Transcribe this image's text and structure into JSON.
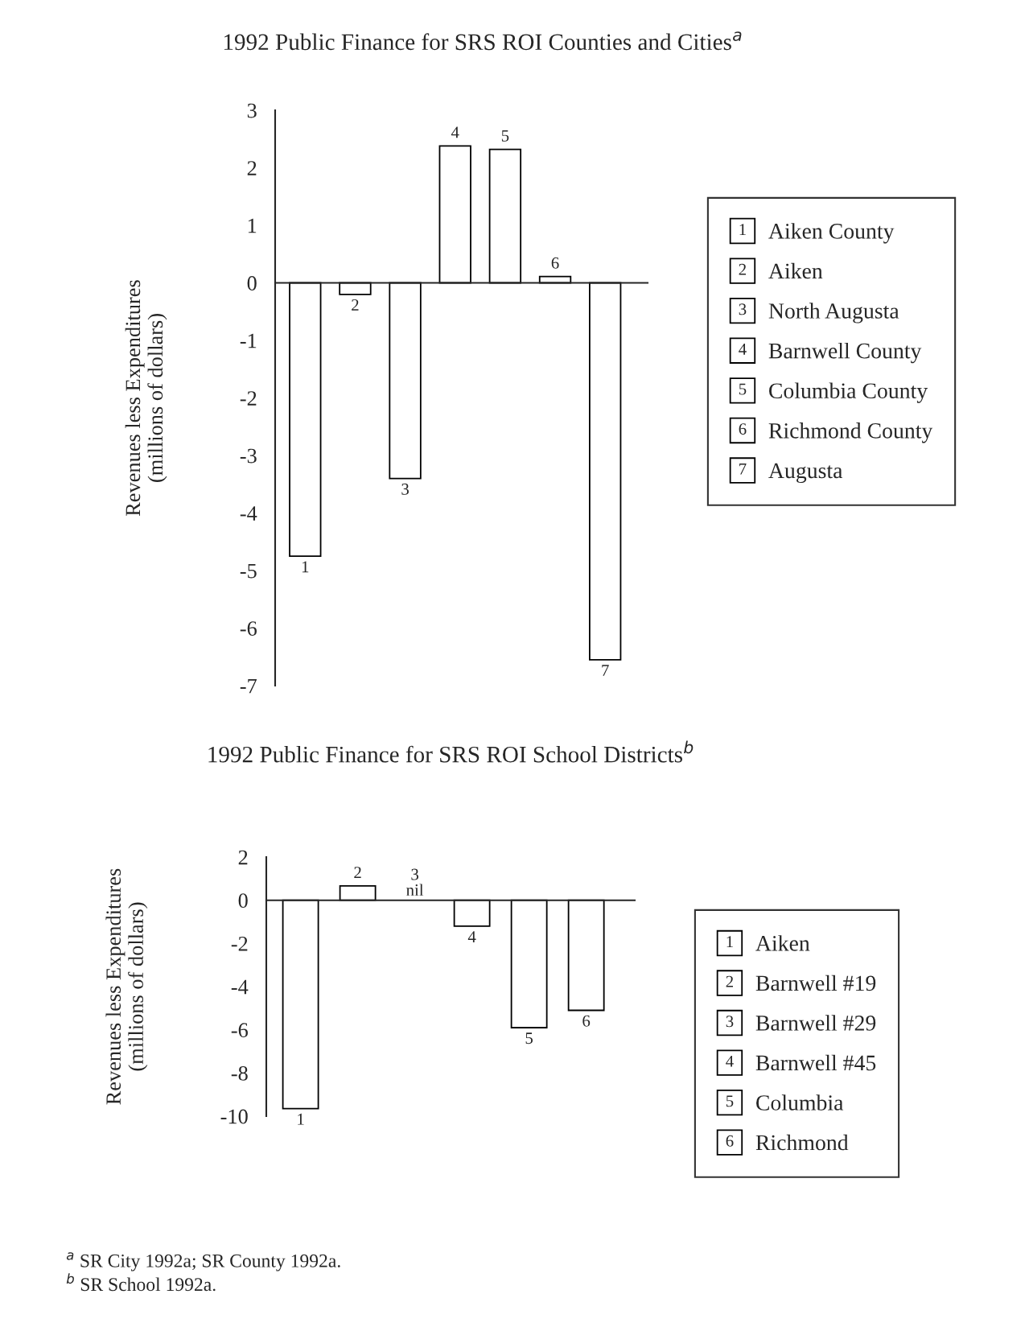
{
  "chart_data": [
    {
      "type": "bar",
      "title": "1992 Public Finance for SRS ROI Counties and Cities$^{a}$",
      "ylabel": "Revenues less Expenditures\n(millions of dollars)",
      "categories": [
        "1",
        "2",
        "3",
        "4",
        "5",
        "6",
        "7"
      ],
      "series": [
        {
          "name": "Aiken County",
          "color": "#ffffff",
          "values": [
            -4.75,
            null,
            null,
            null,
            null,
            null,
            null
          ]
        },
        {
          "name": "Aiken",
          "color": "#ffffff",
          "values": [
            null,
            -0.2,
            null,
            null,
            null,
            null,
            null
          ]
        },
        {
          "name": "North Augusta",
          "color": "#ffffff",
          "values": [
            null,
            null,
            -3.4,
            null,
            null,
            null,
            null
          ]
        },
        {
          "name": "Barnwell County",
          "color": "#ffffff",
          "values": [
            null,
            null,
            null,
            2.38,
            null,
            null,
            null
          ]
        },
        {
          "name": "Columbia County",
          "color": "#ffffff",
          "values": [
            null,
            null,
            null,
            null,
            2.32,
            null,
            null
          ]
        },
        {
          "name": "Richmond County",
          "color": "#ffffff",
          "values": [
            null,
            null,
            null,
            null,
            null,
            0.11,
            null
          ]
        },
        {
          "name": "Augusta",
          "color": "#ffffff",
          "values": [
            null,
            null,
            null,
            null,
            null,
            null,
            -6.55
          ]
        }
      ],
      "ylim": [
        -7,
        3
      ],
      "yticks": [
        -7,
        -6,
        -5,
        -4,
        -3,
        -2,
        -1,
        0,
        1,
        2,
        3
      ],
      "legend": "right",
      "annotations": [
        "$^{a}$ SR City 1992a; SR County 1992a."
      ]
    },
    {
      "type": "bar",
      "title": "1992 Public Finance for SRS ROI School Districts$^{b}$",
      "ylabel": "Revenues less Expenditures\n(millions of dollars)",
      "categories": [
        "1",
        "2",
        "3",
        "4",
        "5",
        "6"
      ],
      "series": [
        {
          "name": "Aiken",
          "color": "#ffffff",
          "values": [
            -9.65,
            null,
            null,
            null,
            null,
            null
          ]
        },
        {
          "name": "Barnwell #19",
          "color": "#ffffff",
          "values": [
            null,
            0.66,
            null,
            null,
            null,
            null
          ]
        },
        {
          "name": "Barnwell #29",
          "color": "#ffffff",
          "values": [
            null,
            null,
            null,
            null,
            null,
            null
          ]
        },
        {
          "name": "Barnwell #45",
          "color": "#ffffff",
          "values": [
            null,
            null,
            null,
            -1.2,
            null,
            null
          ]
        },
        {
          "name": "Columbia",
          "color": "#ffffff",
          "values": [
            null,
            null,
            null,
            null,
            -5.9,
            null
          ]
        },
        {
          "name": "Richmond",
          "color": "#ffffff",
          "values": [
            null,
            null,
            null,
            null,
            null,
            -5.1
          ]
        }
      ],
      "ylim": [
        -10,
        2
      ],
      "yticks": [
        -10,
        -8,
        -6,
        -4,
        -2,
        0,
        2
      ],
      "legend": "right",
      "annotations": [
        "nil",
        "$^{b}$ SR School 1992a."
      ]
    }
  ]
}
